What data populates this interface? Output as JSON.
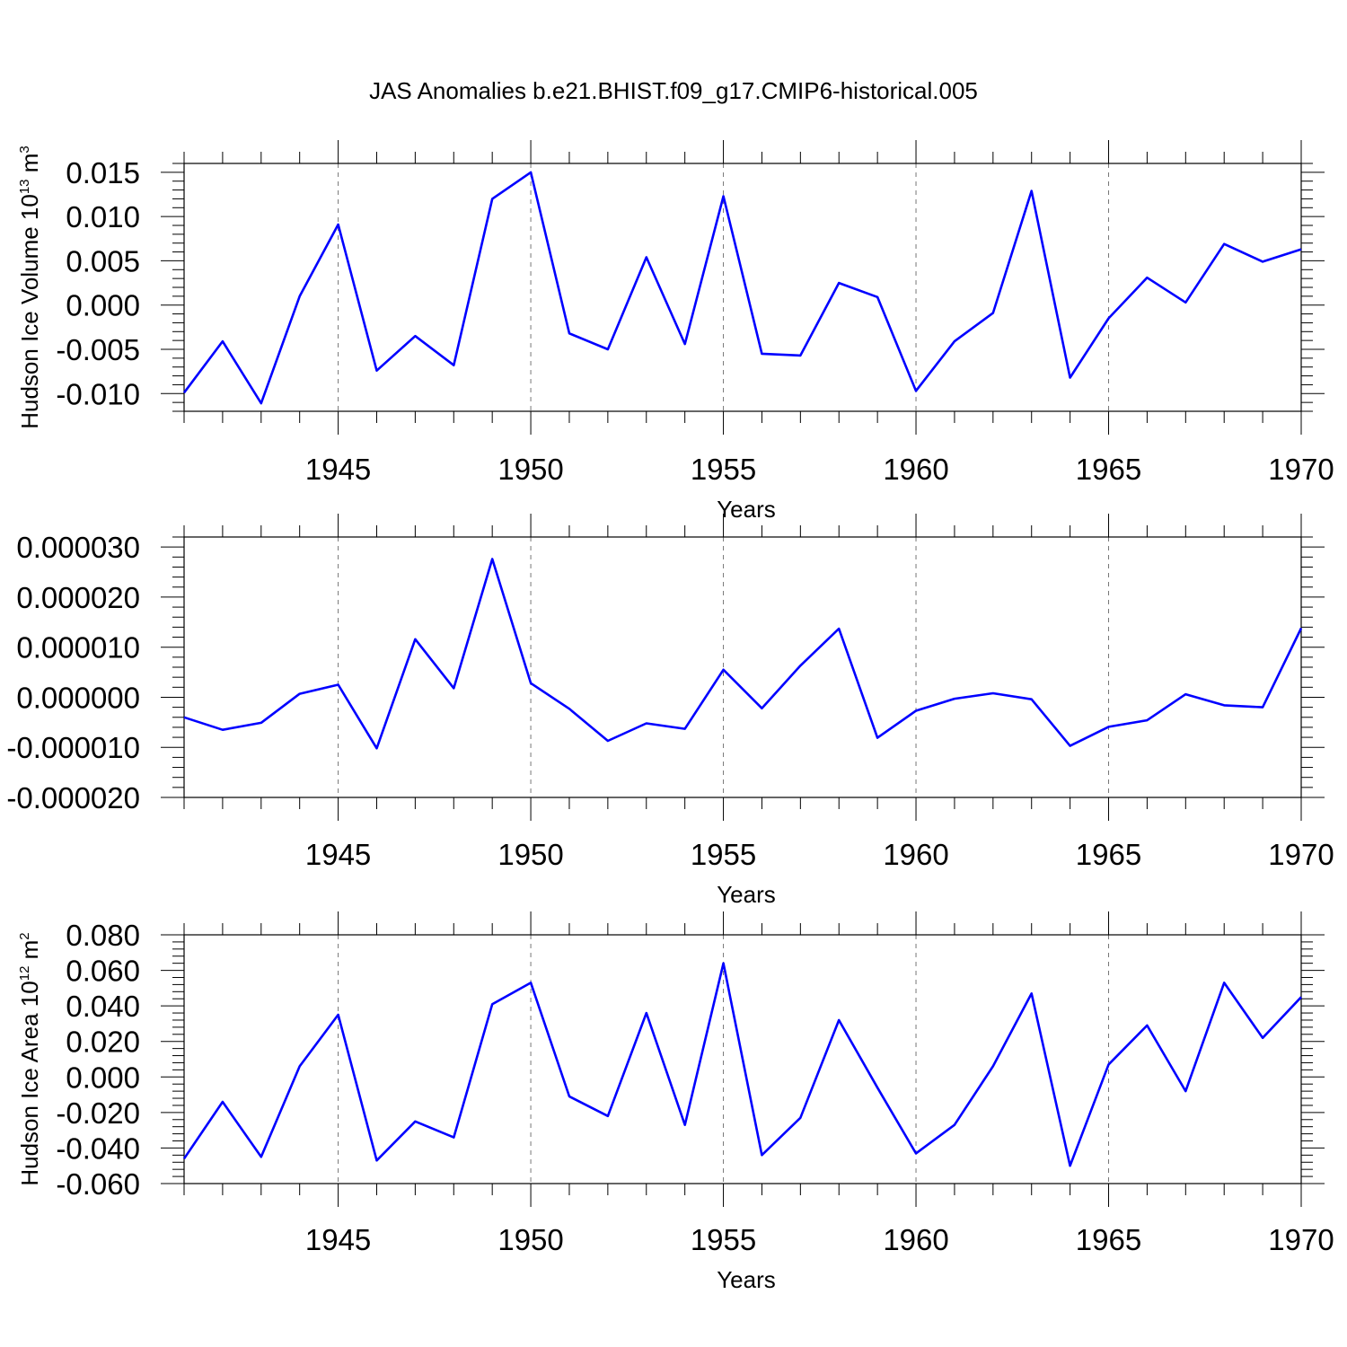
{
  "title": "JAS Anomalies b.e21.BHIST.f09_g17.CMIP6-historical.005",
  "chart_data": [
    {
      "type": "line",
      "title": "JAS Anomalies b.e21.BHIST.f09_g17.CMIP6-historical.005",
      "ylabel": "Hudson Ice Volume 10",
      "ylabel_exp": "13",
      "ylabel_unit": " m",
      "ylabel_unit_exp": "3",
      "xlabel": "Years",
      "xlim": [
        1941,
        1970
      ],
      "ylim": [
        -0.012,
        0.016
      ],
      "yticks": [
        -0.01,
        -0.005,
        0.0,
        0.005,
        0.01,
        0.015
      ],
      "ytick_labels": [
        "-0.010",
        "-0.005",
        "0.000",
        "0.005",
        "0.010",
        "0.015"
      ],
      "xticks": [
        1945,
        1950,
        1955,
        1960,
        1965,
        1970
      ],
      "xtick_labels": [
        "1945",
        "1950",
        "1955",
        "1960",
        "1965",
        "1970"
      ],
      "grid": "vertical dashed at major x ticks",
      "series": [
        {
          "color": "#0000ff",
          "x": [
            1941,
            1942,
            1943,
            1944,
            1945,
            1946,
            1947,
            1948,
            1949,
            1950,
            1951,
            1952,
            1953,
            1954,
            1955,
            1956,
            1957,
            1958,
            1959,
            1960,
            1961,
            1962,
            1963,
            1964,
            1965,
            1966,
            1967,
            1968,
            1969,
            1970
          ],
          "y": [
            -0.0099,
            -0.0041,
            -0.0111,
            0.001,
            0.0091,
            -0.0074,
            -0.0035,
            -0.0068,
            0.012,
            0.015,
            -0.0032,
            -0.005,
            0.0054,
            -0.0044,
            0.0123,
            -0.0055,
            -0.0057,
            0.0025,
            0.0009,
            -0.0097,
            -0.0041,
            -0.0009,
            0.0129,
            -0.0082,
            -0.0015,
            0.0031,
            0.0003,
            0.0069,
            0.0049,
            0.0063
          ]
        }
      ]
    },
    {
      "type": "line",
      "title": "",
      "ylabel": "",
      "xlabel": "Years",
      "xlim": [
        1941,
        1970
      ],
      "ylim": [
        -2e-05,
        3.2e-05
      ],
      "yticks": [
        -2e-05,
        -1e-05,
        0.0,
        1e-05,
        2e-05,
        3e-05
      ],
      "ytick_labels": [
        "-0.000020",
        "-0.000010",
        "0.000000",
        "0.000010",
        "0.000020",
        "0.000030"
      ],
      "xticks": [
        1945,
        1950,
        1955,
        1960,
        1965,
        1970
      ],
      "xtick_labels": [
        "1945",
        "1950",
        "1955",
        "1960",
        "1965",
        "1970"
      ],
      "grid": "vertical dashed at major x ticks",
      "series": [
        {
          "color": "#0000ff",
          "x": [
            1941,
            1942,
            1943,
            1944,
            1945,
            1946,
            1947,
            1948,
            1949,
            1950,
            1951,
            1952,
            1953,
            1954,
            1955,
            1956,
            1957,
            1958,
            1959,
            1960,
            1961,
            1962,
            1963,
            1964,
            1965,
            1966,
            1967,
            1968,
            1969,
            1970
          ],
          "y": [
            -4e-06,
            -6.5e-06,
            -5.1e-06,
            7e-07,
            2.5e-06,
            -1.02e-05,
            1.16e-05,
            1.8e-06,
            2.76e-05,
            2.8e-06,
            -2.3e-06,
            -8.7e-06,
            -5.2e-06,
            -6.3e-06,
            5.5e-06,
            -2.2e-06,
            6.3e-06,
            1.37e-05,
            -8.1e-06,
            -2.7e-06,
            -3e-07,
            8e-07,
            -4e-07,
            -9.7e-06,
            -5.9e-06,
            -4.6e-06,
            6e-07,
            -1.6e-06,
            -2e-06,
            1.38e-05
          ]
        }
      ]
    },
    {
      "type": "line",
      "title": "",
      "ylabel": "Hudson Ice Area 10",
      "ylabel_exp": "12",
      "ylabel_unit": " m",
      "ylabel_unit_exp": "2",
      "xlabel": "Years",
      "xlim": [
        1941,
        1970
      ],
      "ylim": [
        -0.06,
        0.08
      ],
      "yticks": [
        -0.06,
        -0.04,
        -0.02,
        0.0,
        0.02,
        0.04,
        0.06,
        0.08
      ],
      "ytick_labels": [
        "-0.060",
        "-0.040",
        "-0.020",
        "0.000",
        "0.020",
        "0.040",
        "0.060",
        "0.080"
      ],
      "xticks": [
        1945,
        1950,
        1955,
        1960,
        1965,
        1970
      ],
      "xtick_labels": [
        "1945",
        "1950",
        "1955",
        "1960",
        "1965",
        "1970"
      ],
      "grid": "vertical dashed at major x ticks",
      "series": [
        {
          "color": "#0000ff",
          "x": [
            1941,
            1942,
            1943,
            1944,
            1945,
            1946,
            1947,
            1948,
            1949,
            1950,
            1951,
            1952,
            1953,
            1954,
            1955,
            1956,
            1957,
            1958,
            1959,
            1960,
            1961,
            1962,
            1963,
            1964,
            1965,
            1966,
            1967,
            1968,
            1969,
            1970
          ],
          "y": [
            -0.046,
            -0.014,
            -0.045,
            0.006,
            0.035,
            -0.047,
            -0.025,
            -0.034,
            0.041,
            0.053,
            -0.011,
            -0.022,
            0.036,
            -0.027,
            0.064,
            -0.044,
            -0.023,
            0.032,
            -0.006,
            -0.043,
            -0.027,
            0.006,
            0.047,
            -0.05,
            0.007,
            0.029,
            -0.008,
            0.053,
            0.022,
            0.045
          ]
        }
      ]
    }
  ]
}
